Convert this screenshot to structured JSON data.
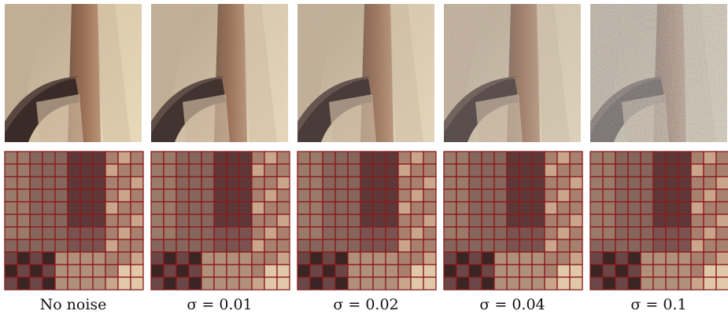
{
  "figure": {
    "captions": [
      "No noise",
      "σ = 0.01",
      "σ = 0.02",
      "σ = 0.04",
      "σ = 0.1"
    ]
  }
}
